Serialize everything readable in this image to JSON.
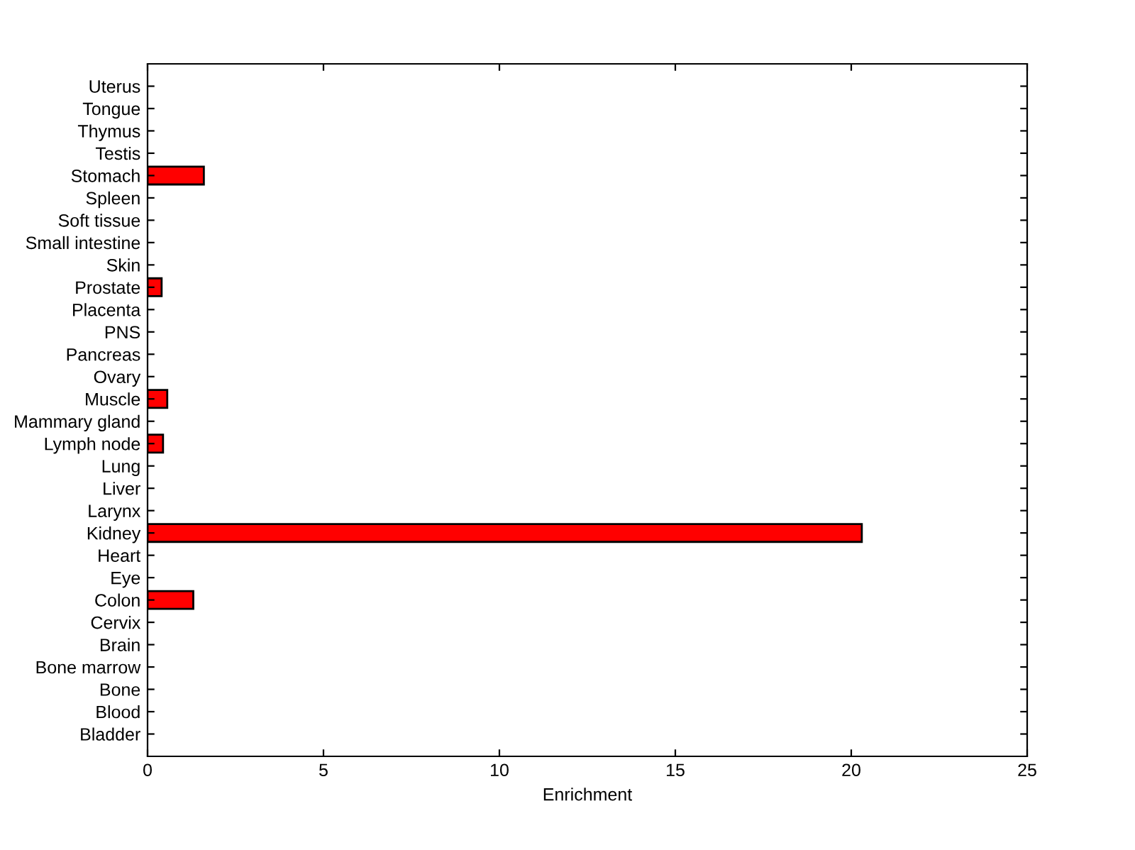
{
  "chart_data": {
    "type": "bar",
    "orientation": "horizontal",
    "xlabel": "Enrichment",
    "categories": [
      "Uterus",
      "Tongue",
      "Thymus",
      "Testis",
      "Stomach",
      "Spleen",
      "Soft tissue",
      "Small intestine",
      "Skin",
      "Prostate",
      "Placenta",
      "PNS",
      "Pancreas",
      "Ovary",
      "Muscle",
      "Mammary gland",
      "Lymph node",
      "Lung",
      "Liver",
      "Larynx",
      "Kidney",
      "Heart",
      "Eye",
      "Colon",
      "Cervix",
      "Brain",
      "Bone marrow",
      "Bone",
      "Blood",
      "Bladder"
    ],
    "values": [
      0,
      0,
      0,
      0,
      1.6,
      0,
      0,
      0,
      0,
      0.4,
      0,
      0,
      0,
      0,
      0.56,
      0,
      0.44,
      0,
      0,
      0,
      20.3,
      0,
      0,
      1.3,
      0,
      0,
      0,
      0,
      0,
      0
    ],
    "color": "#ff0000",
    "xlim": [
      0,
      25
    ],
    "xticks": [
      0,
      5,
      10,
      15,
      20,
      25
    ],
    "grid": false
  }
}
